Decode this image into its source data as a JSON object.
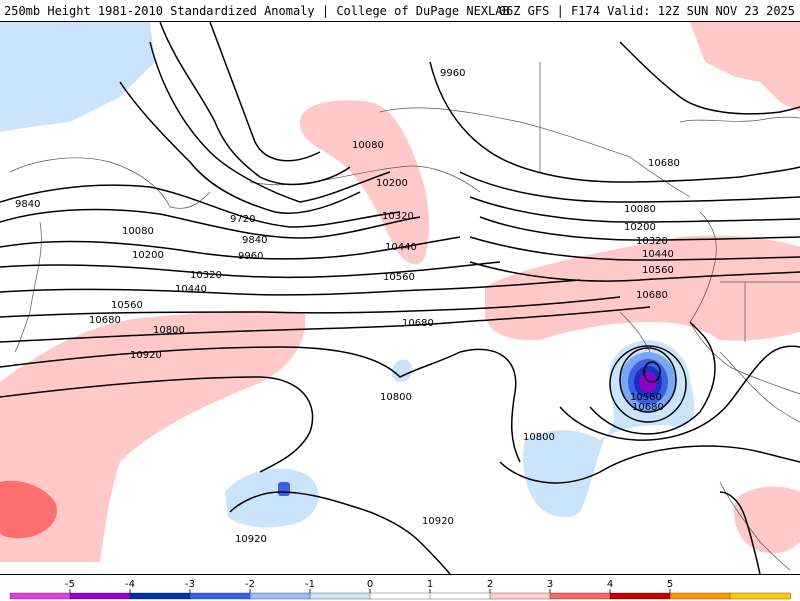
{
  "header": {
    "title_left": "250mb Height 1981-2010 Standardized Anomaly | College of DuPage NEXLAB",
    "title_right": "06Z GFS | F174 Valid: 12Z SUN NOV 23 2025"
  },
  "contour_labels": [
    "9960",
    "10080",
    "10200",
    "10320",
    "10440",
    "10560",
    "10680",
    "9720",
    "9840",
    "9960",
    "10080",
    "10200",
    "10320",
    "10440",
    "10560",
    "10680",
    "9840",
    "10080",
    "10200",
    "10320",
    "10440",
    "10560",
    "10680",
    "10800",
    "10920",
    "10680",
    "10800",
    "10800",
    "10560",
    "10680",
    "10920",
    "10920"
  ],
  "colorbar": {
    "ticks": [
      "-5",
      "-4",
      "-3",
      "-2",
      "-1",
      "0",
      "1",
      "2",
      "3",
      "4",
      "5"
    ],
    "colors": [
      "#e040e0",
      "#9900cc",
      "#0033aa",
      "#3366ee",
      "#99bbff",
      "#cce4fb",
      "#ffffff",
      "#ffffff",
      "#ffcccc",
      "#ff6666",
      "#cc0000",
      "#ff9900",
      "#ffcc00"
    ]
  },
  "anomaly_colors": {
    "pos1": "#ffc9c9",
    "pos2": "#ff6f6f",
    "neg1": "#cce4fb",
    "neg2": "#7aa7f5",
    "neg3": "#3b5fe0",
    "neg4": "#1a2fbf",
    "neg5": "#8f00c8",
    "land": "#ffffff"
  }
}
